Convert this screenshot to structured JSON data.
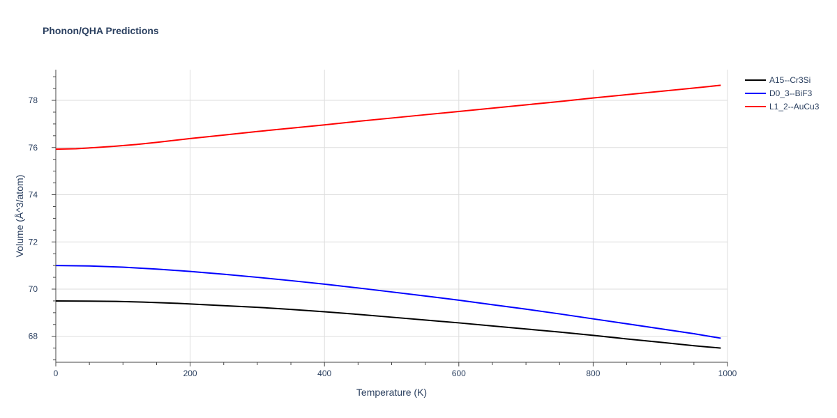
{
  "chart_data": {
    "type": "line",
    "title": "Phonon/QHA Predictions",
    "xlabel": "Temperature (K)",
    "ylabel": "Volume (Å^3/atom)",
    "xlim": [
      0,
      1000
    ],
    "ylim": [
      66.9,
      79.3
    ],
    "x_ticks": [
      0,
      200,
      400,
      600,
      800,
      1000
    ],
    "y_ticks": [
      68,
      70,
      72,
      74,
      76,
      78
    ],
    "grid": true,
    "legend_position": "top-right",
    "series": [
      {
        "name": "A15--Cr3Si",
        "color": "#000000",
        "x": [
          0,
          50,
          90,
          130,
          180,
          250,
          300,
          350,
          400,
          450,
          500,
          550,
          600,
          650,
          700,
          750,
          800,
          850,
          900,
          950,
          990
        ],
        "y": [
          69.5,
          69.49,
          69.48,
          69.45,
          69.4,
          69.3,
          69.23,
          69.14,
          69.04,
          68.93,
          68.81,
          68.69,
          68.57,
          68.44,
          68.31,
          68.18,
          68.04,
          67.89,
          67.75,
          67.6,
          67.5
        ]
      },
      {
        "name": "D0_3--BiF3",
        "color": "#0000ff",
        "x": [
          0,
          50,
          100,
          150,
          200,
          250,
          300,
          350,
          400,
          450,
          500,
          550,
          600,
          650,
          700,
          750,
          800,
          850,
          900,
          950,
          990
        ],
        "y": [
          71.0,
          70.98,
          70.93,
          70.85,
          70.75,
          70.63,
          70.5,
          70.36,
          70.21,
          70.05,
          69.88,
          69.71,
          69.53,
          69.34,
          69.15,
          68.95,
          68.74,
          68.53,
          68.32,
          68.11,
          67.92
        ]
      },
      {
        "name": "L1_2--AuCu3",
        "color": "#ff0000",
        "x": [
          0,
          30,
          60,
          90,
          120,
          150,
          200,
          250,
          300,
          350,
          400,
          450,
          500,
          550,
          600,
          650,
          700,
          750,
          800,
          850,
          900,
          950,
          990
        ],
        "y": [
          75.93,
          75.95,
          76.0,
          76.06,
          76.13,
          76.22,
          76.38,
          76.53,
          76.68,
          76.82,
          76.96,
          77.11,
          77.25,
          77.39,
          77.53,
          77.67,
          77.81,
          77.95,
          78.1,
          78.24,
          78.38,
          78.52,
          78.64
        ]
      }
    ]
  }
}
